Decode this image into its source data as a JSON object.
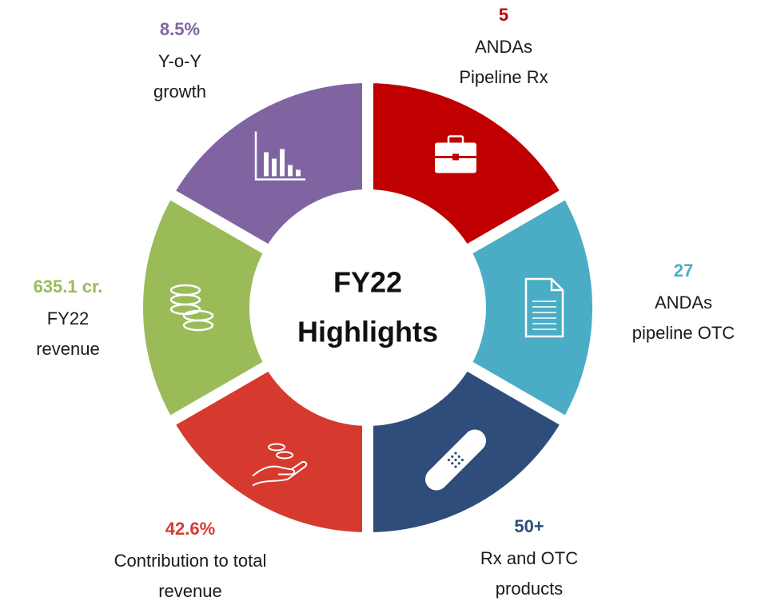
{
  "center": {
    "lines": [
      "FY22",
      "Highlights"
    ]
  },
  "segments": [
    {
      "value": "5",
      "lines": [
        "ANDAs",
        "Pipeline Rx"
      ],
      "color": "#c00000"
    },
    {
      "value": "27",
      "lines": [
        "ANDAs",
        "pipeline OTC"
      ],
      "color": "#4bacc6"
    },
    {
      "value": "50+",
      "lines": [
        "Rx and OTC",
        "products"
      ],
      "color": "#2e4d7b"
    },
    {
      "value": "42.6%",
      "lines": [
        "Contribution to total",
        "revenue"
      ],
      "color": "#d63a2e"
    },
    {
      "value": "635.1 cr.",
      "lines": [
        "FY22",
        "revenue"
      ],
      "color": "#9bbb59"
    },
    {
      "value": "8.5%",
      "lines": [
        "Y-o-Y",
        "growth"
      ],
      "color": "#8064a2"
    }
  ]
}
